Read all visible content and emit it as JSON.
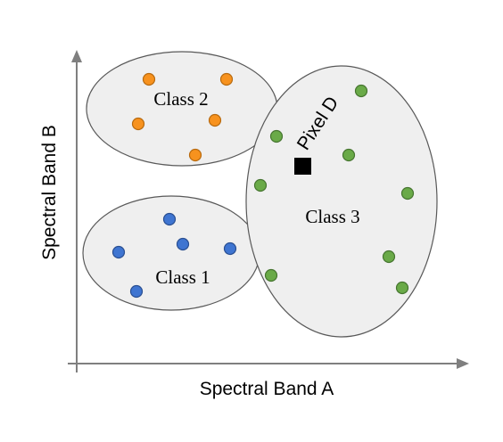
{
  "axes": {
    "x_label": "Spectral Band A",
    "y_label": "Spectral Band B"
  },
  "classes": [
    {
      "id": "class-2",
      "label": "Class 2",
      "color": "#f7921e",
      "stroke": "#b86a0f"
    },
    {
      "id": "class-1",
      "label": "Class 1",
      "color": "#3f75d1",
      "stroke": "#2a4f91"
    },
    {
      "id": "class-3",
      "label": "Class 3",
      "color": "#6aaa48",
      "stroke": "#467530"
    }
  ],
  "pixel": {
    "label": "Pixel D",
    "color": "#000000"
  }
}
